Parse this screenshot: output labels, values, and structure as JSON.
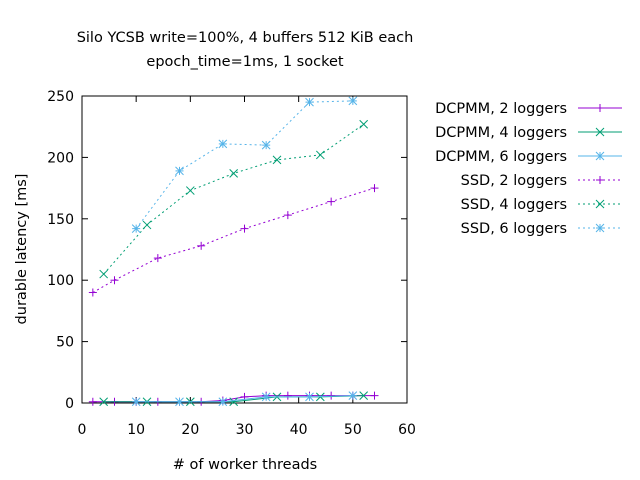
{
  "chart_data": {
    "type": "line",
    "title": [
      "Silo YCSB write=100%, 4 buffers 512 KiB each",
      "epoch_time=1ms, 1 socket"
    ],
    "xlabel": "# of worker threads",
    "ylabel": "durable latency [ms]",
    "xlim": [
      0,
      60
    ],
    "ylim": [
      0,
      250
    ],
    "xticks": [
      0,
      10,
      20,
      30,
      40,
      50,
      60
    ],
    "yticks": [
      0,
      50,
      100,
      150,
      200,
      250
    ],
    "grid": false,
    "legend_position": "outside-right",
    "series": [
      {
        "name": "DCPMM, 2 loggers",
        "color": "#9400d3",
        "dash": "solid",
        "marker": "plus",
        "x": [
          2,
          6,
          10,
          14,
          18,
          22,
          26,
          30,
          34,
          38,
          42,
          46,
          50,
          54
        ],
        "y": [
          1,
          1,
          1,
          1,
          1,
          1,
          2,
          5,
          6,
          6,
          6,
          6,
          6,
          6
        ]
      },
      {
        "name": "DCPMM, 4 loggers",
        "color": "#009e73",
        "dash": "solid",
        "marker": "cross",
        "x": [
          4,
          12,
          20,
          28,
          36,
          44,
          52
        ],
        "y": [
          1,
          1,
          1,
          1,
          5,
          5,
          6
        ]
      },
      {
        "name": "DCPMM, 6 loggers",
        "color": "#56b4e9",
        "dash": "solid",
        "marker": "star",
        "x": [
          10,
          18,
          26,
          34,
          42,
          50
        ],
        "y": [
          1,
          1,
          1,
          5,
          5,
          6
        ]
      },
      {
        "name": "SSD, 2 loggers",
        "color": "#9400d3",
        "dash": "dotted",
        "marker": "plus",
        "x": [
          2,
          6,
          14,
          22,
          30,
          38,
          46,
          54
        ],
        "y": [
          90,
          100,
          118,
          128,
          142,
          153,
          164,
          175
        ]
      },
      {
        "name": "SSD, 4 loggers",
        "color": "#009e73",
        "dash": "dotted",
        "marker": "cross",
        "x": [
          4,
          12,
          20,
          28,
          36,
          44,
          52
        ],
        "y": [
          105,
          145,
          173,
          187,
          198,
          202,
          227
        ]
      },
      {
        "name": "SSD, 6 loggers",
        "color": "#56b4e9",
        "dash": "dotted",
        "marker": "star",
        "x": [
          10,
          18,
          26,
          34,
          42,
          50
        ],
        "y": [
          142,
          189,
          211,
          210,
          245,
          246
        ]
      }
    ]
  }
}
